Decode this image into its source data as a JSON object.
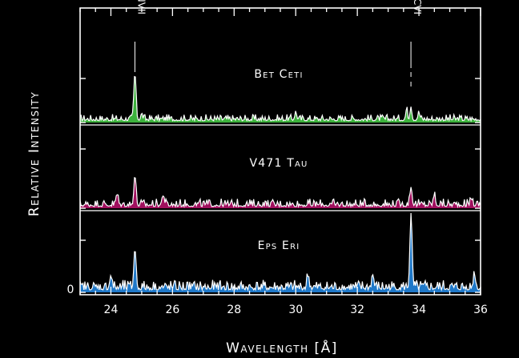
{
  "chart_data": {
    "type": "area",
    "xlabel": "Wavelength [Å]",
    "ylabel": "Relative Intensity",
    "xlim": [
      23,
      36
    ],
    "x_ticks": [
      24,
      26,
      28,
      30,
      32,
      34,
      36
    ],
    "x_tick_labels": [
      "24",
      "26",
      "28",
      "30",
      "32",
      "34",
      "36"
    ],
    "y_zero_label": "0",
    "grid": false,
    "panels": 3,
    "line_markers": [
      {
        "label": "NVII",
        "x": 24.78
      },
      {
        "label": "CVI",
        "x": 33.74
      }
    ],
    "series": [
      {
        "name": "Bet Ceti",
        "color": "#3cb13c",
        "panel": 0,
        "baseline": 0.04,
        "noise": 0.14,
        "peaks": [
          {
            "x": 24.78,
            "height": 1.0,
            "width": 0.05
          },
          {
            "x": 33.6,
            "height": 0.22,
            "width": 0.04
          },
          {
            "x": 33.74,
            "height": 0.3,
            "width": 0.04
          },
          {
            "x": 34.0,
            "height": 0.14,
            "width": 0.05
          },
          {
            "x": 30.0,
            "height": 0.15,
            "width": 0.05
          },
          {
            "x": 25.0,
            "height": 0.1,
            "width": 0.05
          }
        ]
      },
      {
        "name": "V471 Tau",
        "color": "#a0105e",
        "panel": 1,
        "baseline": 0.05,
        "noise": 0.22,
        "peaks": [
          {
            "x": 24.78,
            "height": 0.85,
            "width": 0.05
          },
          {
            "x": 24.2,
            "height": 0.3,
            "width": 0.05
          },
          {
            "x": 25.7,
            "height": 0.3,
            "width": 0.05
          },
          {
            "x": 33.74,
            "height": 0.52,
            "width": 0.05
          },
          {
            "x": 34.5,
            "height": 0.28,
            "width": 0.05
          },
          {
            "x": 35.7,
            "height": 0.22,
            "width": 0.05
          }
        ]
      },
      {
        "name": "Eps Eri",
        "color": "#1f78c8",
        "panel": 2,
        "baseline": 0.05,
        "noise": 0.2,
        "peaks": [
          {
            "x": 24.78,
            "height": 0.82,
            "width": 0.05
          },
          {
            "x": 24.0,
            "height": 0.26,
            "width": 0.05
          },
          {
            "x": 30.4,
            "height": 0.26,
            "width": 0.05
          },
          {
            "x": 32.5,
            "height": 0.26,
            "width": 0.05
          },
          {
            "x": 33.74,
            "height": 1.45,
            "width": 0.05
          },
          {
            "x": 35.8,
            "height": 0.3,
            "width": 0.05
          }
        ]
      }
    ]
  },
  "labels": {
    "xlabel": "Wavelength [Å]",
    "ylabel": "Relative Intensity",
    "y_zero": "0"
  }
}
